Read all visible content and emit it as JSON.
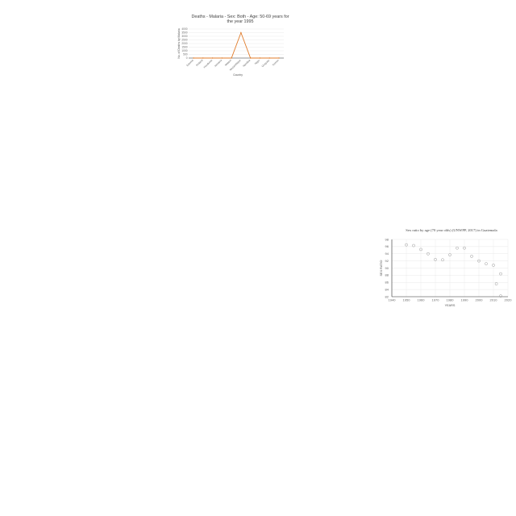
{
  "chart_data": [
    {
      "type": "line",
      "title_lines": [
        "Deaths - Malaria - Sex: Both - Age: 50-69 years for",
        "the year 1995"
      ],
      "xlabel": "Country",
      "ylabel": "No. of Deaths by Malaria",
      "categories": [
        "Estonia",
        "Finland",
        "Honduras",
        "Jamaica",
        "Malawi",
        "Mozambique",
        "Namibia",
        "Niger",
        "Uruguay",
        "Yemen"
      ],
      "series": [
        {
          "values": [
            0,
            0,
            0,
            0,
            0,
            3500,
            0,
            0,
            0,
            0
          ],
          "color": "#e07b2a"
        }
      ],
      "yticks": [
        0,
        500,
        1000,
        1500,
        2000,
        2500,
        3000,
        3500,
        4000
      ],
      "ylim": [
        0,
        4000
      ],
      "grid": true,
      "legend": "none"
    },
    {
      "type": "scatter",
      "title": "Sex ratio by age (70 year olds) (UNWPP, 2017) in Guatemala",
      "xlabel": "YEARS",
      "ylabel": "SEX RATIO",
      "x": [
        1950,
        1955,
        1960,
        1965,
        1970,
        1975,
        1980,
        1985,
        1990,
        1995,
        2000,
        2005,
        2010,
        2015
      ],
      "y": [
        96.5,
        96.3,
        95.2,
        94.0,
        92.4,
        92.3,
        93.7,
        95.6,
        95.6,
        93.3,
        92.0,
        91.2,
        90.8,
        88.4
      ],
      "extra_points": [
        {
          "x": 2012,
          "y": 85.6
        },
        {
          "x": 2015,
          "y": 82.2
        }
      ],
      "xticks": [
        1940,
        1950,
        1960,
        1970,
        1980,
        1990,
        2000,
        2010,
        2020
      ],
      "yticks": [
        82,
        84,
        86,
        88,
        90,
        92,
        94,
        96,
        98
      ],
      "xlim": [
        1940,
        2020
      ],
      "ylim": [
        82,
        98
      ],
      "marker": "open-circle",
      "marker_color": "#9b9b9b",
      "grid": true,
      "legend": "none"
    }
  ]
}
